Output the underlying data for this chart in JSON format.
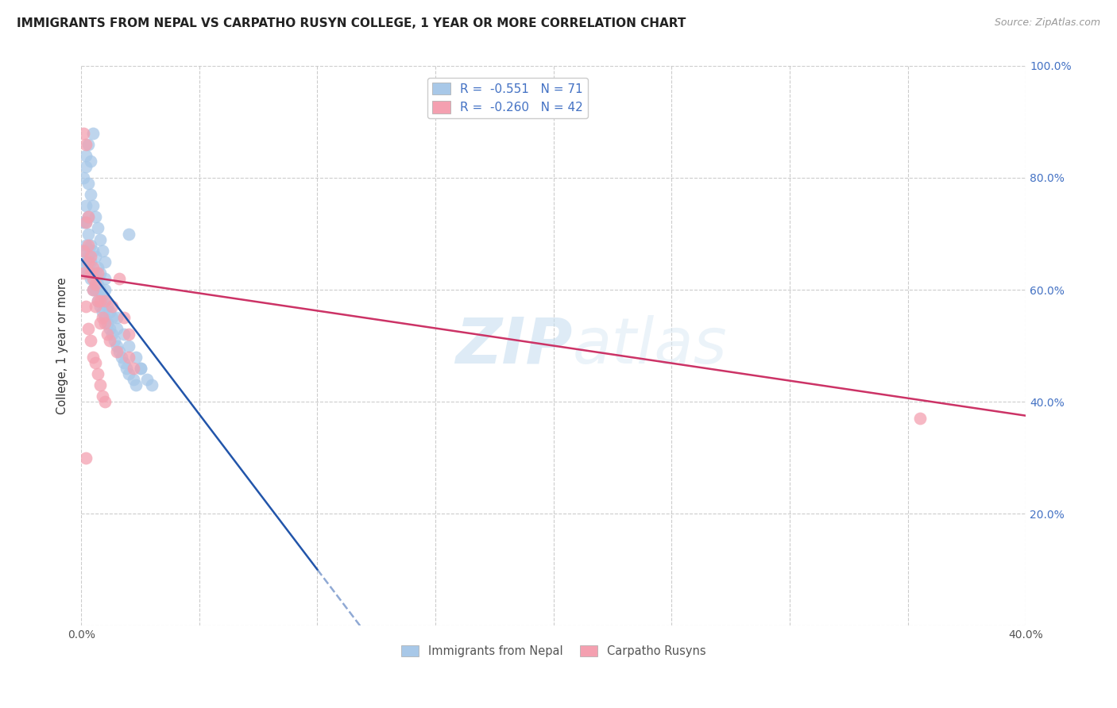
{
  "title": "IMMIGRANTS FROM NEPAL VS CARPATHO RUSYN COLLEGE, 1 YEAR OR MORE CORRELATION CHART",
  "source": "Source: ZipAtlas.com",
  "ylabel": "College, 1 year or more",
  "legend_label1": "Immigrants from Nepal",
  "legend_label2": "Carpatho Rusyns",
  "R1": -0.551,
  "N1": 71,
  "R2": -0.26,
  "N2": 42,
  "color1": "#a8c8e8",
  "color2": "#f4a0b0",
  "line_color1": "#2255aa",
  "line_color2": "#cc3366",
  "watermark_zip": "ZIP",
  "watermark_atlas": "atlas",
  "xlim": [
    0.0,
    0.4
  ],
  "ylim": [
    0.0,
    1.0
  ],
  "nepal_x": [
    0.001,
    0.001,
    0.001,
    0.002,
    0.002,
    0.002,
    0.002,
    0.003,
    0.003,
    0.003,
    0.003,
    0.004,
    0.004,
    0.004,
    0.005,
    0.005,
    0.005,
    0.006,
    0.006,
    0.006,
    0.007,
    0.007,
    0.007,
    0.008,
    0.008,
    0.008,
    0.009,
    0.009,
    0.01,
    0.01,
    0.01,
    0.011,
    0.011,
    0.012,
    0.012,
    0.013,
    0.013,
    0.014,
    0.015,
    0.015,
    0.016,
    0.017,
    0.018,
    0.019,
    0.02,
    0.022,
    0.023,
    0.025,
    0.028,
    0.03,
    0.001,
    0.002,
    0.003,
    0.004,
    0.005,
    0.006,
    0.007,
    0.008,
    0.009,
    0.01,
    0.002,
    0.003,
    0.004,
    0.005,
    0.018,
    0.02,
    0.023,
    0.025,
    0.02,
    0.01,
    0.015
  ],
  "nepal_y": [
    0.67,
    0.64,
    0.72,
    0.65,
    0.68,
    0.72,
    0.75,
    0.63,
    0.66,
    0.7,
    0.73,
    0.62,
    0.65,
    0.68,
    0.6,
    0.63,
    0.67,
    0.6,
    0.63,
    0.66,
    0.58,
    0.61,
    0.64,
    0.57,
    0.6,
    0.63,
    0.56,
    0.59,
    0.55,
    0.58,
    0.62,
    0.54,
    0.57,
    0.53,
    0.56,
    0.52,
    0.55,
    0.51,
    0.5,
    0.53,
    0.49,
    0.48,
    0.47,
    0.46,
    0.45,
    0.44,
    0.43,
    0.46,
    0.44,
    0.43,
    0.8,
    0.82,
    0.79,
    0.77,
    0.75,
    0.73,
    0.71,
    0.69,
    0.67,
    0.65,
    0.84,
    0.86,
    0.83,
    0.88,
    0.52,
    0.5,
    0.48,
    0.46,
    0.7,
    0.6,
    0.55
  ],
  "rusyn_x": [
    0.001,
    0.001,
    0.002,
    0.002,
    0.003,
    0.003,
    0.003,
    0.004,
    0.004,
    0.005,
    0.005,
    0.005,
    0.006,
    0.006,
    0.007,
    0.007,
    0.008,
    0.008,
    0.009,
    0.01,
    0.01,
    0.011,
    0.012,
    0.013,
    0.015,
    0.016,
    0.018,
    0.02,
    0.02,
    0.022,
    0.001,
    0.002,
    0.003,
    0.004,
    0.005,
    0.006,
    0.007,
    0.008,
    0.009,
    0.01,
    0.355,
    0.002
  ],
  "rusyn_y": [
    0.67,
    0.88,
    0.86,
    0.72,
    0.68,
    0.73,
    0.65,
    0.63,
    0.66,
    0.62,
    0.6,
    0.64,
    0.61,
    0.57,
    0.58,
    0.63,
    0.58,
    0.54,
    0.55,
    0.54,
    0.58,
    0.52,
    0.51,
    0.57,
    0.49,
    0.62,
    0.55,
    0.48,
    0.52,
    0.46,
    0.63,
    0.57,
    0.53,
    0.51,
    0.48,
    0.47,
    0.45,
    0.43,
    0.41,
    0.4,
    0.37,
    0.3
  ],
  "blue_line_x0": 0.0,
  "blue_line_y0": 0.655,
  "blue_line_x1": 0.1,
  "blue_line_y1": 0.1,
  "pink_line_x0": 0.0,
  "pink_line_y0": 0.625,
  "pink_line_x1": 0.4,
  "pink_line_y1": 0.375
}
